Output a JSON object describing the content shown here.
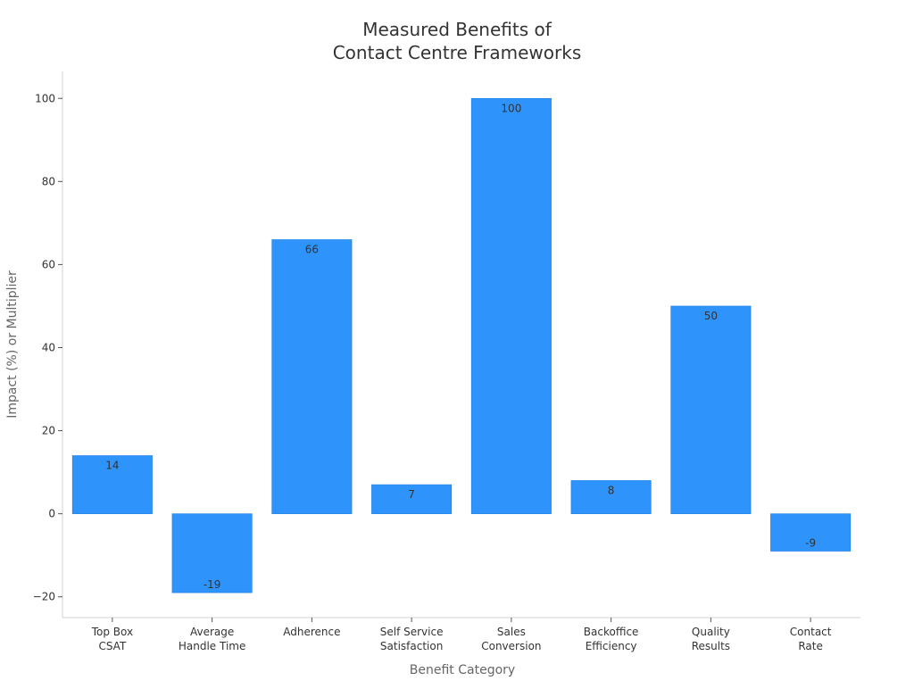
{
  "chart_data": {
    "type": "bar",
    "title_lines": [
      "Measured Benefits of",
      "Contact Centre Frameworks"
    ],
    "xlabel": "Benefit Category",
    "ylabel": "Impact (%) or Multiplier",
    "categories": [
      [
        "Top Box",
        "CSAT"
      ],
      [
        "Average",
        "Handle Time"
      ],
      [
        "Adherence"
      ],
      [
        "Self Service",
        "Satisfaction"
      ],
      [
        "Sales",
        "Conversion"
      ],
      [
        "Backoffice",
        "Efficiency"
      ],
      [
        "Quality",
        "Results"
      ],
      [
        "Contact",
        "Rate"
      ]
    ],
    "values": [
      14,
      -19,
      66,
      7,
      100,
      8,
      50,
      -9
    ],
    "value_labels": [
      "14",
      "-19",
      "66",
      "7",
      "100",
      "8",
      "50",
      "-9"
    ],
    "ylim": [
      -25,
      106.5
    ],
    "yticks": [
      -20,
      0,
      20,
      40,
      60,
      80,
      100
    ],
    "ytick_labels": [
      "−20",
      "0",
      "20",
      "40",
      "60",
      "80",
      "100"
    ],
    "grid": false,
    "legend": false,
    "colors": {
      "bar": "#2e93fa",
      "bar_edge": "#1f7fe0",
      "axis": "#d0d0d0",
      "tick_text": "#333333",
      "title_text": "#333333",
      "label_text": "#666666",
      "value_text": "#333333"
    }
  }
}
